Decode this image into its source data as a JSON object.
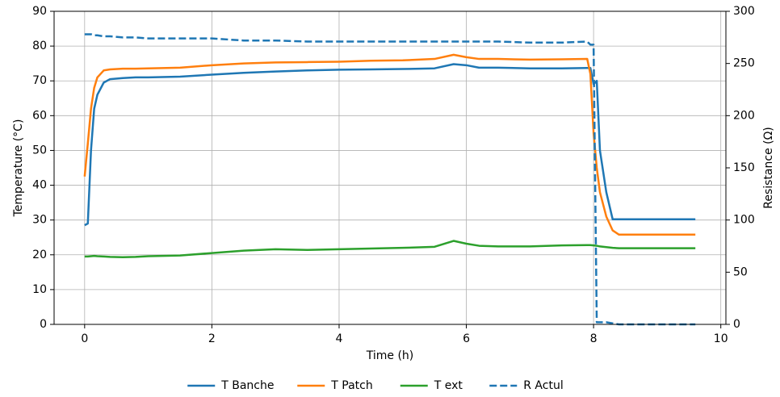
{
  "chart_data": {
    "type": "line",
    "xlabel": "Time (h)",
    "ylabel": "Temperature (°C)",
    "y2label": "Resistance (Ω)",
    "x": [
      0,
      0.05,
      0.1,
      0.15,
      0.2,
      0.3,
      0.4,
      0.6,
      0.8,
      1,
      1.5,
      2,
      2.5,
      3,
      3.5,
      4,
      4.5,
      5,
      5.5,
      5.8,
      6,
      6.2,
      6.5,
      7,
      7.5,
      7.9,
      7.95,
      8.0,
      8.05,
      8.1,
      8.2,
      8.3,
      8.4,
      9,
      9.6
    ],
    "series": [
      {
        "name": "T Banche",
        "color": "#1f77b4",
        "linestyle": "solid",
        "values": [
          28.5,
          29,
          50,
          62,
          66,
          69.5,
          70.5,
          70.8,
          71,
          71,
          71.2,
          71.8,
          72.3,
          72.7,
          73,
          73.2,
          73.3,
          73.4,
          73.6,
          74.8,
          74.5,
          73.8,
          73.8,
          73.6,
          73.6,
          73.7,
          73.7,
          69,
          70,
          50,
          38,
          30.2,
          30.2,
          30.2,
          30.2
        ]
      },
      {
        "name": "T Patch",
        "color": "#ff7f0e",
        "linestyle": "solid",
        "values": [
          42.5,
          52,
          62,
          68,
          71,
          73,
          73.3,
          73.5,
          73.5,
          73.6,
          73.8,
          74.5,
          75,
          75.3,
          75.4,
          75.5,
          75.8,
          75.9,
          76.3,
          77.5,
          76.8,
          76.3,
          76.3,
          76.1,
          76.2,
          76.3,
          72,
          55,
          45,
          38,
          31,
          27,
          25.8,
          25.8,
          25.8
        ]
      },
      {
        "name": "T ext",
        "color": "#2ca02c",
        "linestyle": "solid",
        "values": [
          19.5,
          19.5,
          19.6,
          19.7,
          19.6,
          19.5,
          19.4,
          19.3,
          19.4,
          19.6,
          19.8,
          20.5,
          21.2,
          21.6,
          21.4,
          21.6,
          21.8,
          22,
          22.3,
          24,
          23.2,
          22.6,
          22.4,
          22.4,
          22.7,
          22.8,
          22.8,
          22.7,
          22.6,
          22.4,
          22.2,
          22,
          21.9,
          21.9,
          21.9
        ]
      },
      {
        "name": "R Actul",
        "color": "#1f77b4",
        "linestyle": "dashed",
        "axis": "y2",
        "values": [
          278,
          278,
          278,
          277,
          277,
          276,
          276,
          275,
          275,
          274,
          274,
          274,
          272,
          272,
          271,
          271,
          271,
          271,
          271,
          271,
          271,
          271,
          271,
          270,
          270,
          271,
          268,
          268,
          2,
          2,
          2,
          1,
          0,
          0,
          0
        ]
      }
    ],
    "xlim": [
      -0.48,
      10.08
    ],
    "xticks": [
      0,
      2,
      4,
      6,
      8,
      10
    ],
    "ylim": [
      0,
      90
    ],
    "yticks": [
      0,
      10,
      20,
      30,
      40,
      50,
      60,
      70,
      80,
      90
    ],
    "y2lim": [
      0,
      300
    ],
    "y2ticks": [
      0,
      50,
      100,
      150,
      200,
      250,
      300
    ],
    "grid": true,
    "legend": "lower center"
  }
}
